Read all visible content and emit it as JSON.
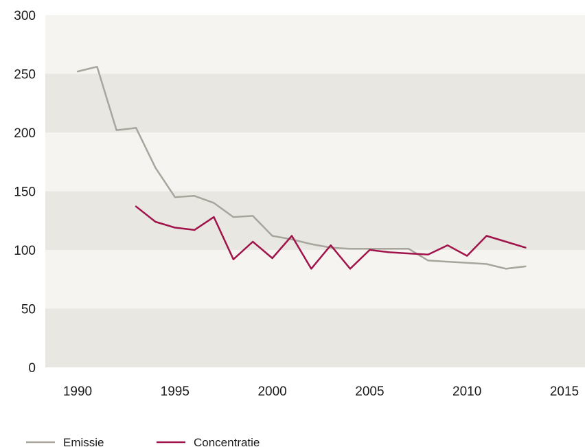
{
  "chart_data": {
    "type": "line",
    "title": "",
    "xlabel": "",
    "ylabel": "",
    "xlim": [
      1990,
      2015
    ],
    "ylim": [
      0,
      300
    ],
    "x_ticks": [
      1990,
      1995,
      2000,
      2005,
      2010,
      2015
    ],
    "y_ticks": [
      0,
      50,
      100,
      150,
      200,
      250,
      300
    ],
    "grid": "alternating horizontal bands",
    "legend_position": "bottom-left",
    "series": [
      {
        "name": "Emissie",
        "color": "#a7a59c",
        "x": [
          1990,
          1991,
          1992,
          1993,
          1994,
          1995,
          1996,
          1997,
          1998,
          1999,
          2000,
          2001,
          2002,
          2003,
          2004,
          2005,
          2006,
          2007,
          2008,
          2009,
          2010,
          2011,
          2012,
          2013
        ],
        "y": [
          252,
          256,
          202,
          204,
          170,
          145,
          146,
          140,
          128,
          129,
          112,
          109,
          105,
          102,
          101,
          101,
          101,
          101,
          91,
          90,
          89,
          88,
          84,
          86
        ]
      },
      {
        "name": "Concentratie",
        "color": "#a0134a",
        "x": [
          1993,
          1994,
          1995,
          1996,
          1997,
          1998,
          1999,
          2000,
          2001,
          2002,
          2003,
          2004,
          2005,
          2006,
          2007,
          2008,
          2009,
          2010,
          2011,
          2012,
          2013
        ],
        "y": [
          137,
          124,
          119,
          117,
          128,
          92,
          107,
          93,
          112,
          84,
          104,
          84,
          100,
          98,
          97,
          96,
          104,
          95,
          112,
          107,
          102
        ]
      }
    ]
  },
  "colors": {
    "band_light": "#f5f4f1",
    "band_dark": "#e9e7e2"
  }
}
